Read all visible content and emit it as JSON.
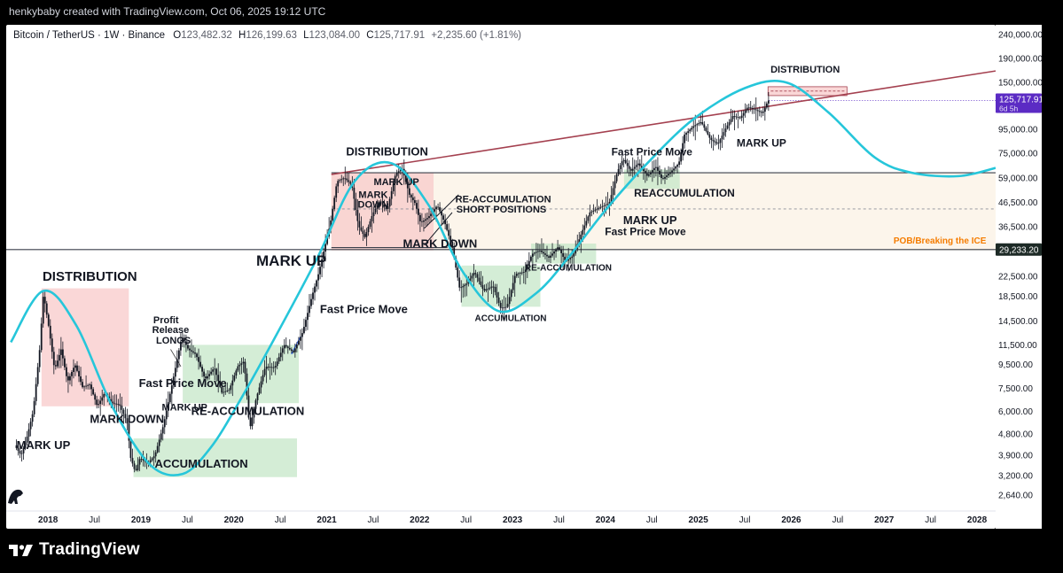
{
  "caption": "henkybaby created with TradingView.com, Oct 06, 2025 19:12 UTC",
  "brand": "TradingView",
  "colors": {
    "background": "#000000",
    "cycle_curve": "#26c6da",
    "resistance_line": "#a4404f",
    "candle": "#131722",
    "red_zone": "#f8c9c9",
    "green_zone": "#c6e7c8",
    "beige_zone": "#fbf2e4",
    "last_price_tag": "#5b2bc4",
    "pob_label": "#f57c00"
  },
  "chart_data": {
    "type": "candlestick",
    "symbol": "Bitcoin / TetherUS · 1W · Binance",
    "ohlc": {
      "o_label": "O",
      "o": "123,482.32",
      "h_label": "H",
      "h": "126,199.63",
      "l_label": "L",
      "l": "123,084.00",
      "c_label": "C",
      "c": "125,717.91",
      "change": "+2,235.60 (+1.81%)"
    },
    "y_scale": "log",
    "y_ticks": [
      "240,000.00",
      "190,000.00",
      "150,000.00",
      "95,000.00",
      "75,000.00",
      "59,000.00",
      "46,500.00",
      "36,500.00",
      "22,500.00",
      "18,500.00",
      "14,500.00",
      "11,500.00",
      "9,500.00",
      "7,500.00",
      "6,000.00",
      "4,800.00",
      "3,900.00",
      "3,200.00",
      "2,640.00"
    ],
    "y_tick_values": [
      240000,
      190000,
      150000,
      95000,
      75000,
      59000,
      46500,
      36500,
      22500,
      18500,
      14500,
      11500,
      9500,
      7500,
      6000,
      4800,
      3900,
      3200,
      2640
    ],
    "x_ticks": [
      "2018",
      "Jul",
      "2019",
      "Jul",
      "2020",
      "Jul",
      "2021",
      "Jul",
      "2022",
      "Jul",
      "2023",
      "Jul",
      "2024",
      "Jul",
      "2025",
      "Jul",
      "2026",
      "Jul",
      "2027",
      "Jul",
      "2028"
    ],
    "x_tick_years": [
      2018.0,
      2018.5,
      2019.0,
      2019.5,
      2020.0,
      2020.5,
      2021.0,
      2021.5,
      2022.0,
      2022.5,
      2023.0,
      2023.5,
      2024.0,
      2024.5,
      2025.0,
      2025.5,
      2026.0,
      2026.5,
      2027.0,
      2027.5,
      2028.0
    ],
    "x_range": [
      2017.55,
      2028.2
    ],
    "y_range": [
      2300,
      255000
    ],
    "price_tags": [
      {
        "label": "125,717.91",
        "sub": "6d 5h",
        "value": 125717.91
      },
      {
        "label": "29,233.20",
        "value": 29233.2
      }
    ],
    "price_path": [
      [
        2017.65,
        4300
      ],
      [
        2017.72,
        3900
      ],
      [
        2017.78,
        4600
      ],
      [
        2017.85,
        6000
      ],
      [
        2017.92,
        11000
      ],
      [
        2017.96,
        19000
      ],
      [
        2018.02,
        13500
      ],
      [
        2018.08,
        9000
      ],
      [
        2018.15,
        11000
      ],
      [
        2018.22,
        8000
      ],
      [
        2018.3,
        9500
      ],
      [
        2018.38,
        7600
      ],
      [
        2018.46,
        7800
      ],
      [
        2018.54,
        6300
      ],
      [
        2018.62,
        7200
      ],
      [
        2018.7,
        6500
      ],
      [
        2018.78,
        6400
      ],
      [
        2018.86,
        5400
      ],
      [
        2018.9,
        3800
      ],
      [
        2018.95,
        3300
      ],
      [
        2019.0,
        3800
      ],
      [
        2019.08,
        3600
      ],
      [
        2019.16,
        3900
      ],
      [
        2019.25,
        5200
      ],
      [
        2019.35,
        8000
      ],
      [
        2019.45,
        12500
      ],
      [
        2019.52,
        11000
      ],
      [
        2019.6,
        10500
      ],
      [
        2019.7,
        8200
      ],
      [
        2019.8,
        9200
      ],
      [
        2019.88,
        7200
      ],
      [
        2019.96,
        7400
      ],
      [
        2020.05,
        9300
      ],
      [
        2020.12,
        9800
      ],
      [
        2020.18,
        5000
      ],
      [
        2020.25,
        6800
      ],
      [
        2020.35,
        9300
      ],
      [
        2020.45,
        9200
      ],
      [
        2020.55,
        11500
      ],
      [
        2020.65,
        10700
      ],
      [
        2020.75,
        13000
      ],
      [
        2020.85,
        18500
      ],
      [
        2020.92,
        23000
      ],
      [
        2020.98,
        29000
      ],
      [
        2021.05,
        38000
      ],
      [
        2021.12,
        57000
      ],
      [
        2021.2,
        59000
      ],
      [
        2021.28,
        55000
      ],
      [
        2021.35,
        37000
      ],
      [
        2021.42,
        33000
      ],
      [
        2021.5,
        41000
      ],
      [
        2021.58,
        47000
      ],
      [
        2021.66,
        43000
      ],
      [
        2021.75,
        61000
      ],
      [
        2021.82,
        65000
      ],
      [
        2021.9,
        50000
      ],
      [
        2021.96,
        46000
      ],
      [
        2022.02,
        38000
      ],
      [
        2022.1,
        40000
      ],
      [
        2022.2,
        45000
      ],
      [
        2022.28,
        38000
      ],
      [
        2022.36,
        30000
      ],
      [
        2022.44,
        20000
      ],
      [
        2022.52,
        21000
      ],
      [
        2022.6,
        23500
      ],
      [
        2022.7,
        19500
      ],
      [
        2022.8,
        20500
      ],
      [
        2022.88,
        16500
      ],
      [
        2022.95,
        16700
      ],
      [
        2023.04,
        23000
      ],
      [
        2023.14,
        23500
      ],
      [
        2023.22,
        28000
      ],
      [
        2023.3,
        29000
      ],
      [
        2023.4,
        27000
      ],
      [
        2023.5,
        30000
      ],
      [
        2023.58,
        26000
      ],
      [
        2023.66,
        27500
      ],
      [
        2023.76,
        35000
      ],
      [
        2023.84,
        42000
      ],
      [
        2023.94,
        44000
      ],
      [
        2024.05,
        46000
      ],
      [
        2024.14,
        63000
      ],
      [
        2024.2,
        71000
      ],
      [
        2024.28,
        63000
      ],
      [
        2024.36,
        68000
      ],
      [
        2024.46,
        60000
      ],
      [
        2024.55,
        66000
      ],
      [
        2024.62,
        58000
      ],
      [
        2024.72,
        63000
      ],
      [
        2024.8,
        68000
      ],
      [
        2024.86,
        90000
      ],
      [
        2024.96,
        98000
      ],
      [
        2025.04,
        102000
      ],
      [
        2025.14,
        86000
      ],
      [
        2025.22,
        82000
      ],
      [
        2025.3,
        95000
      ],
      [
        2025.38,
        108000
      ],
      [
        2025.46,
        106000
      ],
      [
        2025.54,
        118000
      ],
      [
        2025.62,
        115000
      ],
      [
        2025.7,
        111000
      ],
      [
        2025.76,
        125717.91
      ]
    ],
    "cycle_curve": [
      [
        2017.6,
        11800
      ],
      [
        2017.95,
        19500
      ],
      [
        2018.3,
        14000
      ],
      [
        2018.7,
        6200
      ],
      [
        2019.1,
        3550
      ],
      [
        2019.45,
        3250
      ],
      [
        2019.75,
        4200
      ],
      [
        2020.05,
        6500
      ],
      [
        2020.45,
        12500
      ],
      [
        2020.9,
        27000
      ],
      [
        2021.3,
        57000
      ],
      [
        2021.7,
        68000
      ],
      [
        2022.1,
        45000
      ],
      [
        2022.45,
        24000
      ],
      [
        2022.85,
        16000
      ],
      [
        2023.25,
        19000
      ],
      [
        2023.6,
        27000
      ],
      [
        2024.0,
        43000
      ],
      [
        2024.45,
        68000
      ],
      [
        2024.95,
        105000
      ],
      [
        2025.5,
        142000
      ],
      [
        2025.95,
        150000
      ],
      [
        2026.4,
        112000
      ],
      [
        2026.9,
        72000
      ],
      [
        2027.3,
        62000
      ],
      [
        2027.8,
        60000
      ],
      [
        2028.2,
        65000
      ]
    ],
    "trendline": {
      "from": [
        2021.05,
        61000
      ],
      "to": [
        2028.2,
        168000
      ]
    },
    "hlines": [
      {
        "value": 62000,
        "style": "solid",
        "from": 2021.05
      },
      {
        "value": 29233.2,
        "style": "solid",
        "from": 2017.55
      },
      {
        "value": 43500,
        "style": "dashed",
        "from": 2021.05
      },
      {
        "value": 29800,
        "style": "solid",
        "from": 2021.05,
        "to": 2022.3
      }
    ],
    "zones": [
      {
        "kind": "red",
        "x0": 2017.93,
        "x1": 2018.87,
        "y0": 6300,
        "y1": 20000
      },
      {
        "kind": "green",
        "x0": 2018.92,
        "x1": 2020.68,
        "y0": 3150,
        "y1": 4600
      },
      {
        "kind": "green",
        "x0": 2019.45,
        "x1": 2020.7,
        "y0": 6500,
        "y1": 11500
      },
      {
        "kind": "beige",
        "x0": 2021.05,
        "x1": 2028.2,
        "y0": 29000,
        "y1": 62000
      },
      {
        "kind": "red",
        "x0": 2021.05,
        "x1": 2022.15,
        "y0": 29000,
        "y1": 62000
      },
      {
        "kind": "green",
        "x0": 2022.45,
        "x1": 2023.3,
        "y0": 16700,
        "y1": 25000
      },
      {
        "kind": "green",
        "x0": 2023.2,
        "x1": 2023.9,
        "y0": 25500,
        "y1": 31000
      },
      {
        "kind": "green",
        "x0": 2024.2,
        "x1": 2024.8,
        "y0": 53000,
        "y1": 64000
      },
      {
        "kind": "red",
        "x0": 2025.75,
        "x1": 2026.6,
        "y0": 132000,
        "y1": 144000
      }
    ],
    "annotations": [
      {
        "text": "DISTRIBUTION",
        "x": 2018.45,
        "y": 21500,
        "size": 15,
        "weight": "bold"
      },
      {
        "text": "MARK UP",
        "x": 2017.95,
        "y": 4150,
        "size": 13,
        "weight": "bold"
      },
      {
        "text": "MARK DOWN",
        "x": 2018.85,
        "y": 5350,
        "size": 13,
        "weight": "bold"
      },
      {
        "text": "ACCUMULATION",
        "x": 2019.65,
        "y": 3450,
        "size": 13,
        "weight": "bold"
      },
      {
        "text": "Fast Price Move",
        "x": 2019.45,
        "y": 7600,
        "size": 13,
        "weight": "bold"
      },
      {
        "text": "MARK UP",
        "x": 2019.47,
        "y": 6050,
        "size": 11,
        "weight": "bold"
      },
      {
        "text": "Profit",
        "x": 2019.27,
        "y": 14200,
        "size": 11,
        "weight": "bold"
      },
      {
        "text": "Release",
        "x": 2019.32,
        "y": 12900,
        "size": 11,
        "weight": "bold"
      },
      {
        "text": "LONGS",
        "x": 2019.35,
        "y": 11650,
        "size": 11,
        "weight": "bold"
      },
      {
        "text": "RE-ACCUMULATION",
        "x": 2020.15,
        "y": 5800,
        "size": 13,
        "weight": "bold"
      },
      {
        "text": "MARK UP",
        "x": 2020.62,
        "y": 25000,
        "size": 17,
        "weight": "bold"
      },
      {
        "text": "Fast Price Move",
        "x": 2021.4,
        "y": 15700,
        "size": 13,
        "weight": "bold"
      },
      {
        "text": "DISTRIBUTION",
        "x": 2021.65,
        "y": 73500,
        "size": 13,
        "weight": "bold"
      },
      {
        "text": "MARK UP",
        "x": 2021.75,
        "y": 55000,
        "size": 11,
        "weight": "bold"
      },
      {
        "text": "MARK",
        "x": 2021.5,
        "y": 48500,
        "size": 11,
        "weight": "bold"
      },
      {
        "text": "DOWN",
        "x": 2021.5,
        "y": 44000,
        "size": 11,
        "weight": "bold"
      },
      {
        "text": "RE-ACCUMULATION",
        "x": 2022.9,
        "y": 46500,
        "size": 11,
        "weight": "bold"
      },
      {
        "text": "SHORT POSITIONS",
        "x": 2022.88,
        "y": 42000,
        "size": 11,
        "weight": "bold"
      },
      {
        "text": "MARK DOWN",
        "x": 2022.22,
        "y": 29800,
        "size": 13,
        "weight": "bold"
      },
      {
        "text": "ACCUMULATION",
        "x": 2022.98,
        "y": 14500,
        "size": 10,
        "weight": "bold"
      },
      {
        "text": "RE-ACCUMULATION",
        "x": 2023.6,
        "y": 23800,
        "size": 10,
        "weight": "bold"
      },
      {
        "text": "Fast Price Move",
        "x": 2024.5,
        "y": 73500,
        "size": 12,
        "weight": "bold"
      },
      {
        "text": "REACCUMULATION",
        "x": 2024.85,
        "y": 49000,
        "size": 12,
        "weight": "bold"
      },
      {
        "text": "MARK UP",
        "x": 2024.48,
        "y": 37500,
        "size": 13,
        "weight": "bold"
      },
      {
        "text": "Fast Price Move",
        "x": 2024.43,
        "y": 33600,
        "size": 12,
        "weight": "bold"
      },
      {
        "text": "MARK UP",
        "x": 2025.68,
        "y": 80000,
        "size": 12,
        "weight": "bold"
      },
      {
        "text": "DISTRIBUTION",
        "x": 2026.15,
        "y": 165000,
        "size": 11,
        "weight": "bold"
      },
      {
        "text": "POB/Breaking the ICE",
        "x": 2027.6,
        "y": 31000,
        "size": 10,
        "weight": "bold",
        "color": "#f57c00"
      }
    ]
  }
}
